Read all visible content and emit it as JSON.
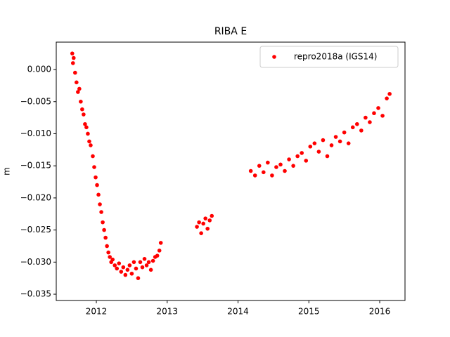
{
  "chart_data": {
    "type": "scatter",
    "title": "RIBA E",
    "y_label": "m",
    "x": [
      2011.66,
      2011.67,
      2011.68,
      2011.7,
      2011.72,
      2011.74,
      2011.76,
      2011.78,
      2011.8,
      2011.82,
      2011.84,
      2011.86,
      2011.88,
      2011.9,
      2011.92,
      2011.95,
      2011.97,
      2011.99,
      2012.01,
      2012.03,
      2012.05,
      2012.07,
      2012.09,
      2012.11,
      2012.13,
      2012.15,
      2012.17,
      2012.19,
      2012.21,
      2012.23,
      2012.26,
      2012.29,
      2012.32,
      2012.35,
      2012.38,
      2012.41,
      2012.44,
      2012.47,
      2012.5,
      2012.53,
      2012.56,
      2012.59,
      2012.62,
      2012.65,
      2012.68,
      2012.71,
      2012.74,
      2012.77,
      2012.8,
      2012.83,
      2012.86,
      2012.89,
      2012.91,
      2013.42,
      2013.45,
      2013.48,
      2013.51,
      2013.54,
      2013.57,
      2013.6,
      2013.63,
      2014.18,
      2014.24,
      2014.3,
      2014.36,
      2014.42,
      2014.48,
      2014.54,
      2014.6,
      2014.66,
      2014.72,
      2014.78,
      2014.84,
      2014.9,
      2014.96,
      2015.02,
      2015.08,
      2015.14,
      2015.2,
      2015.26,
      2015.32,
      2015.38,
      2015.44,
      2015.5,
      2015.56,
      2015.62,
      2015.68,
      2015.74,
      2015.8,
      2015.86,
      2015.92,
      2015.98,
      2016.04,
      2016.1,
      2016.14
    ],
    "series": [
      {
        "name": "repro2018a (IGS14)",
        "color": "#ff0000",
        "values": [
          0.0025,
          0.001,
          0.0018,
          -0.0005,
          -0.002,
          -0.0035,
          -0.003,
          -0.005,
          -0.0062,
          -0.007,
          -0.0085,
          -0.009,
          -0.01,
          -0.0112,
          -0.0118,
          -0.0135,
          -0.0152,
          -0.0168,
          -0.018,
          -0.0195,
          -0.021,
          -0.0222,
          -0.0238,
          -0.025,
          -0.0262,
          -0.0275,
          -0.0285,
          -0.0292,
          -0.03,
          -0.0296,
          -0.0305,
          -0.031,
          -0.0302,
          -0.0315,
          -0.0308,
          -0.032,
          -0.0312,
          -0.0305,
          -0.0318,
          -0.03,
          -0.031,
          -0.0325,
          -0.03,
          -0.0308,
          -0.0295,
          -0.0305,
          -0.03,
          -0.0312,
          -0.0298,
          -0.0292,
          -0.029,
          -0.0282,
          -0.027,
          -0.0245,
          -0.0238,
          -0.0255,
          -0.024,
          -0.0232,
          -0.0248,
          -0.0235,
          -0.0228,
          -0.0158,
          -0.0165,
          -0.015,
          -0.016,
          -0.0145,
          -0.0165,
          -0.0152,
          -0.0148,
          -0.0158,
          -0.014,
          -0.015,
          -0.0135,
          -0.013,
          -0.0142,
          -0.012,
          -0.0115,
          -0.0128,
          -0.011,
          -0.0135,
          -0.0118,
          -0.0105,
          -0.0112,
          -0.0098,
          -0.0115,
          -0.009,
          -0.0085,
          -0.0095,
          -0.0075,
          -0.0082,
          -0.0068,
          -0.006,
          -0.0072,
          -0.0045,
          -0.0038
        ]
      }
    ],
    "xlim": [
      2011.434,
      2016.357
    ],
    "xticks": [
      2012,
      2013,
      2014,
      2015,
      2016
    ],
    "ylim": [
      -0.03598,
      0.00427
    ],
    "yticks": [
      {
        "value": 0,
        "label": "0.000"
      },
      {
        "value": -0.005,
        "label": "−0.005"
      },
      {
        "value": -0.01,
        "label": "−0.010"
      },
      {
        "value": -0.015,
        "label": "−0.015"
      },
      {
        "value": -0.02,
        "label": "−0.020"
      },
      {
        "value": -0.025,
        "label": "−0.025"
      },
      {
        "value": -0.03,
        "label": "−0.030"
      },
      {
        "value": -0.035,
        "label": "−0.035"
      }
    ],
    "grid": false,
    "legend": "upper right"
  }
}
